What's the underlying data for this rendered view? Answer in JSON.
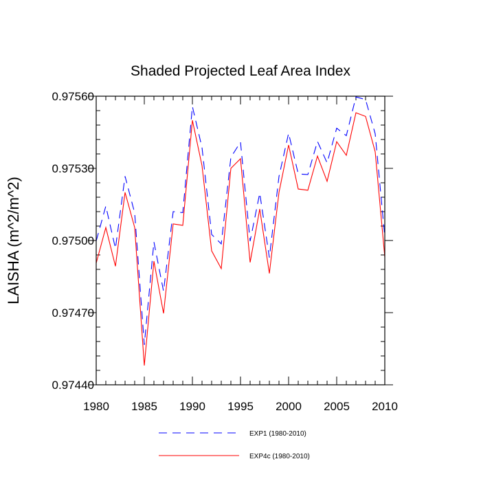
{
  "chart_data": {
    "type": "line",
    "title": "Shaded Projected Leaf Area Index",
    "xlabel": "",
    "ylabel": "LAISHA  (m^2/m^2)",
    "xlim": [
      1980,
      2010
    ],
    "ylim": [
      0.9744,
      0.9756
    ],
    "x_ticks": [
      1980,
      1985,
      1990,
      1995,
      2000,
      2005,
      2010
    ],
    "x_tick_labels": [
      "1980",
      "1985",
      "1990",
      "1995",
      "2000",
      "2005",
      "2010"
    ],
    "y_ticks": [
      0.9744,
      0.9747,
      0.975,
      0.9753,
      0.9756
    ],
    "y_tick_labels": [
      "0.97440",
      "0.97470",
      "0.97500",
      "0.97530",
      "0.97560"
    ],
    "grid": false,
    "legend_position": "bottom",
    "x": [
      1980,
      1981,
      1982,
      1983,
      1984,
      1985,
      1986,
      1987,
      1988,
      1989,
      1990,
      1991,
      1992,
      1993,
      1994,
      1995,
      1996,
      1997,
      1998,
      1999,
      2000,
      2001,
      2002,
      2003,
      2004,
      2005,
      2006,
      2007,
      2008,
      2009,
      2010
    ],
    "series": [
      {
        "name": "EXP1 (1980-2010)",
        "color": "#0000ff",
        "dash": "dashed",
        "values": [
          0.974998,
          0.975143,
          0.974967,
          0.975267,
          0.975114,
          0.974566,
          0.974994,
          0.974789,
          0.97512,
          0.975116,
          0.975557,
          0.975386,
          0.975025,
          0.974986,
          0.975346,
          0.975409,
          0.974997,
          0.975197,
          0.974929,
          0.975266,
          0.975446,
          0.975277,
          0.975274,
          0.975412,
          0.975323,
          0.975467,
          0.975436,
          0.975597,
          0.975586,
          0.975444,
          0.975015
        ]
      },
      {
        "name": "EXP4c (1980-2010)",
        "color": "#ff0000",
        "dash": "solid",
        "values": [
          0.974906,
          0.975054,
          0.974893,
          0.9752,
          0.975054,
          0.97448,
          0.974914,
          0.974697,
          0.975069,
          0.975063,
          0.9755,
          0.975311,
          0.974957,
          0.974883,
          0.9753,
          0.97534,
          0.974909,
          0.975131,
          0.974863,
          0.9752,
          0.975397,
          0.975214,
          0.975209,
          0.975351,
          0.975246,
          0.975411,
          0.975354,
          0.975531,
          0.975516,
          0.975369,
          0.974931
        ]
      }
    ]
  }
}
